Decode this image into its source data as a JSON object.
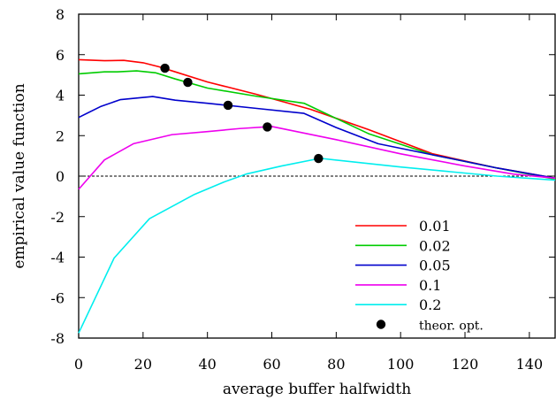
{
  "chart_data": {
    "type": "line",
    "title": "",
    "xlabel": "average buffer halfwidth",
    "ylabel": "empirical value function",
    "xlim": [
      0,
      148
    ],
    "ylim": [
      -8,
      8
    ],
    "xticks": [
      0,
      20,
      40,
      60,
      80,
      100,
      120,
      140
    ],
    "yticks": [
      -8,
      -6,
      -4,
      -2,
      0,
      2,
      4,
      6,
      8
    ],
    "zero_reference_line": {
      "y": 0,
      "style": "dashed"
    },
    "legend_placement": "bottom-right",
    "series": [
      {
        "name": "0.01",
        "color": "#ff0000",
        "x": [
          0,
          8,
          14,
          20,
          25,
          30,
          40,
          55,
          72,
          90,
          110,
          130,
          148
        ],
        "y": [
          5.75,
          5.7,
          5.72,
          5.6,
          5.4,
          5.15,
          4.65,
          4.05,
          3.3,
          2.3,
          1.1,
          0.4,
          -0.1
        ]
      },
      {
        "name": "0.02",
        "color": "#00cc00",
        "x": [
          0,
          8,
          12,
          18,
          24,
          30,
          40,
          55,
          70,
          90,
          110,
          130,
          148
        ],
        "y": [
          5.05,
          5.15,
          5.15,
          5.2,
          5.1,
          4.8,
          4.35,
          3.95,
          3.6,
          2.1,
          1.05,
          0.4,
          -0.15
        ]
      },
      {
        "name": "0.05",
        "color": "#0000cc",
        "x": [
          0,
          7,
          13,
          23,
          30,
          40,
          55,
          70,
          80,
          93,
          110,
          130,
          148
        ],
        "y": [
          2.9,
          3.45,
          3.78,
          3.93,
          3.75,
          3.6,
          3.35,
          3.1,
          2.4,
          1.6,
          1.05,
          0.4,
          -0.1
        ]
      },
      {
        "name": "0.1",
        "color": "#ee00ee",
        "x": [
          0,
          8,
          17,
          29,
          40,
          50,
          60,
          80,
          100,
          120,
          135,
          148
        ],
        "y": [
          -0.65,
          0.8,
          1.6,
          2.05,
          2.2,
          2.35,
          2.45,
          1.8,
          1.1,
          0.5,
          0.1,
          -0.1
        ]
      },
      {
        "name": "0.2",
        "color": "#00eeee",
        "x": [
          0,
          11,
          22,
          36,
          45,
          52,
          63,
          75,
          100,
          130,
          148
        ],
        "y": [
          -7.75,
          -4.05,
          -2.1,
          -0.9,
          -0.3,
          0.1,
          0.5,
          0.88,
          0.45,
          0.0,
          -0.2
        ]
      },
      {
        "name": "theor. opt.",
        "color": "#000000",
        "marker": "circle",
        "x": [
          26.8,
          33.9,
          46.4,
          58.6,
          74.5
        ],
        "y": [
          5.33,
          4.63,
          3.5,
          2.43,
          0.87
        ]
      }
    ]
  }
}
